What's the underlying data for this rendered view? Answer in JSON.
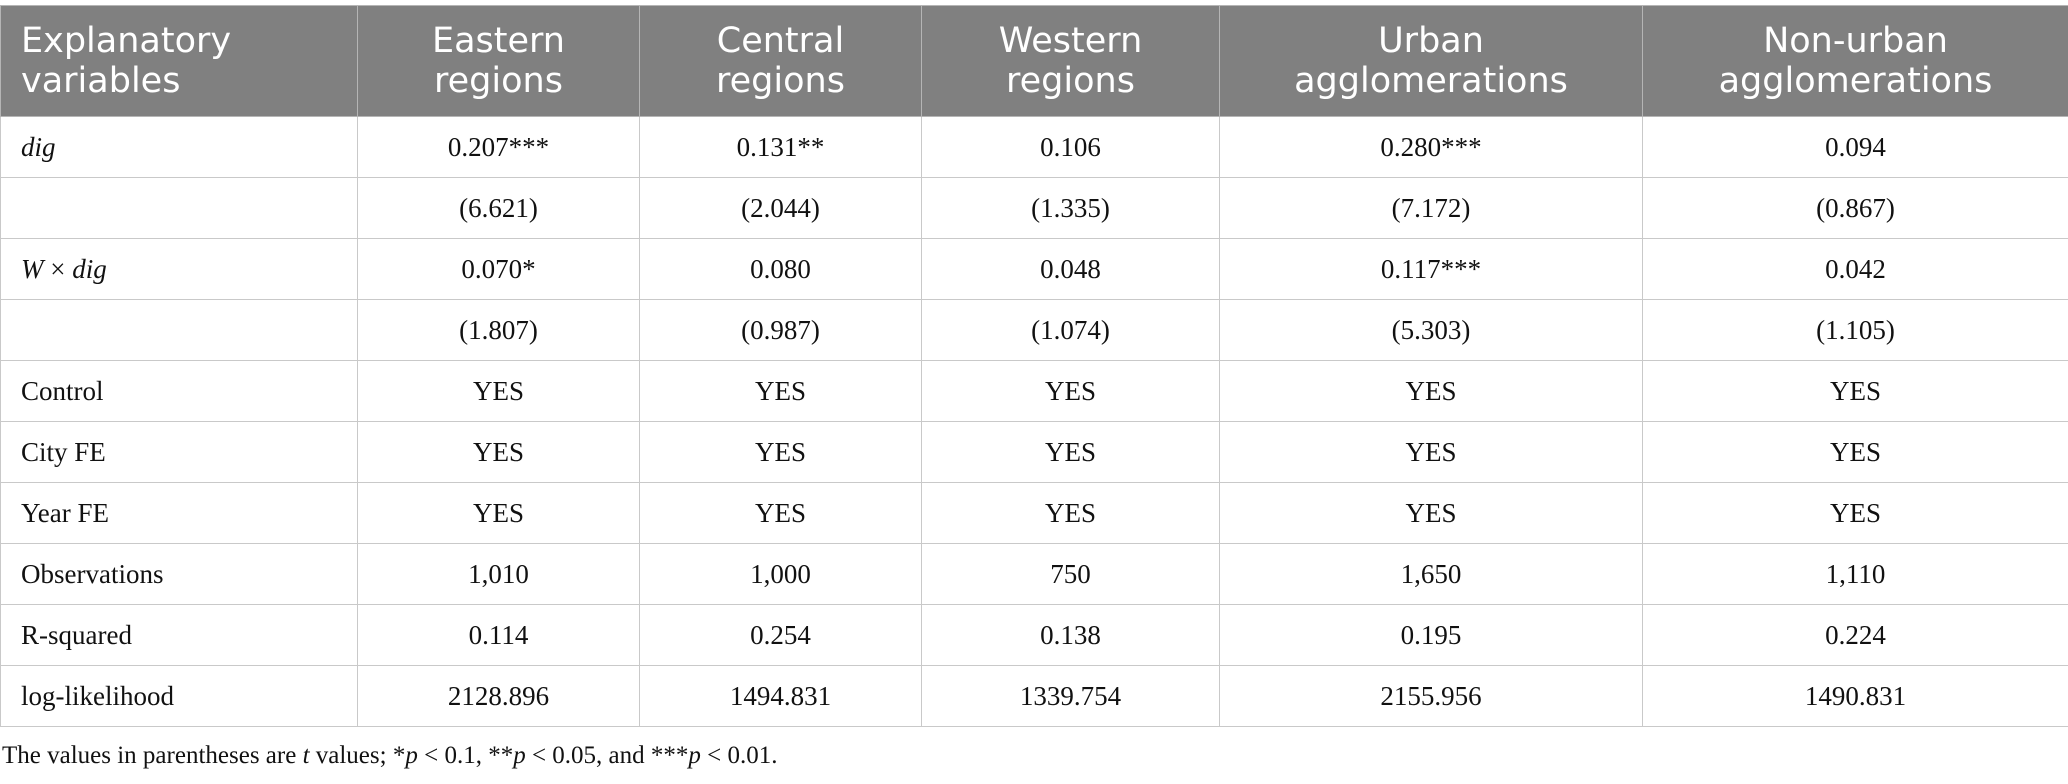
{
  "table": {
    "headers": [
      [
        "Explanatory",
        "variables"
      ],
      [
        "Eastern",
        "regions"
      ],
      [
        "Central",
        "regions"
      ],
      [
        "Western",
        "regions"
      ],
      [
        "Urban",
        "agglomerations"
      ],
      [
        "Non-urban",
        "agglomerations"
      ]
    ],
    "rows": [
      {
        "label_parts": [
          {
            "t": "dig",
            "i": true
          }
        ],
        "cells": [
          "0.207***",
          "0.131**",
          "0.106",
          "0.280***",
          "0.094"
        ]
      },
      {
        "label_parts": [],
        "cells": [
          "(6.621)",
          "(2.044)",
          "(1.335)",
          "(7.172)",
          "(0.867)"
        ]
      },
      {
        "label_parts": [
          {
            "t": "W",
            "i": true
          },
          {
            "t": " × ",
            "i": false
          },
          {
            "t": "dig",
            "i": true
          }
        ],
        "cells": [
          "0.070*",
          "0.080",
          "0.048",
          "0.117***",
          "0.042"
        ]
      },
      {
        "label_parts": [],
        "cells": [
          "(1.807)",
          "(0.987)",
          "(1.074)",
          "(5.303)",
          "(1.105)"
        ]
      },
      {
        "label_parts": [
          {
            "t": "Control",
            "i": false
          }
        ],
        "cells": [
          "YES",
          "YES",
          "YES",
          "YES",
          "YES"
        ]
      },
      {
        "label_parts": [
          {
            "t": "City FE",
            "i": false
          }
        ],
        "cells": [
          "YES",
          "YES",
          "YES",
          "YES",
          "YES"
        ]
      },
      {
        "label_parts": [
          {
            "t": "Year FE",
            "i": false
          }
        ],
        "cells": [
          "YES",
          "YES",
          "YES",
          "YES",
          "YES"
        ]
      },
      {
        "label_parts": [
          {
            "t": "Observations",
            "i": false
          }
        ],
        "cells": [
          "1,010",
          "1,000",
          "750",
          "1,650",
          "1,110"
        ]
      },
      {
        "label_parts": [
          {
            "t": "R-squared",
            "i": false
          }
        ],
        "cells": [
          "0.114",
          "0.254",
          "0.138",
          "0.195",
          "0.224"
        ]
      },
      {
        "label_parts": [
          {
            "t": "log-likelihood",
            "i": false
          }
        ],
        "cells": [
          "2128.896",
          "1494.831",
          "1339.754",
          "2155.956",
          "1490.831"
        ]
      }
    ]
  },
  "note_parts": [
    {
      "t": "The values in parentheses are ",
      "i": false
    },
    {
      "t": "t",
      "i": true
    },
    {
      "t": " values; *",
      "i": false
    },
    {
      "t": "p",
      "i": true
    },
    {
      "t": " < 0.1, **",
      "i": false
    },
    {
      "t": "p",
      "i": true
    },
    {
      "t": " < 0.05, and ***",
      "i": false
    },
    {
      "t": "p",
      "i": true
    },
    {
      "t": " < 0.01.",
      "i": false
    }
  ]
}
